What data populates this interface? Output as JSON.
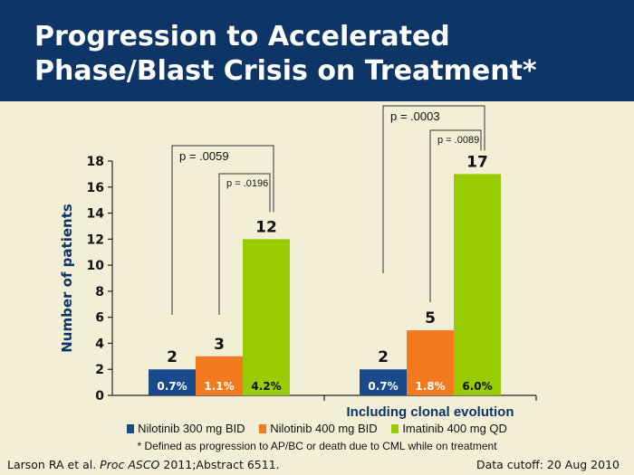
{
  "title_line1": "Progression to Accelerated",
  "title_line2": "Phase/Blast Crisis on Treatment*",
  "chart_data": {
    "type": "bar",
    "ylabel": "Number of patients",
    "ylim": [
      0,
      18
    ],
    "yticks": [
      0,
      2,
      4,
      6,
      8,
      10,
      12,
      14,
      16,
      18
    ],
    "categories": [
      "",
      "Including clonal evolution"
    ],
    "series": [
      {
        "name": "Nilotinib 300 mg BID",
        "color": "#1b4a8c",
        "values": [
          2,
          2
        ],
        "pct_labels": [
          "0.7%",
          "0.7%"
        ]
      },
      {
        "name": "Nilotinib 400 mg BID",
        "color": "#f47a20",
        "values": [
          3,
          5
        ],
        "pct_labels": [
          "1.1%",
          "1.8%"
        ]
      },
      {
        "name": "Imatinib 400 mg QD",
        "color": "#99cc00",
        "values": [
          12,
          17
        ],
        "pct_labels": [
          "4.2%",
          "6.0%"
        ]
      }
    ],
    "annotations": [
      {
        "group": 0,
        "from": 0,
        "to": 2,
        "label": "p = .0059",
        "level": "outer"
      },
      {
        "group": 0,
        "from": 1,
        "to": 2,
        "label": "p = .0196",
        "level": "inner"
      },
      {
        "group": 1,
        "from": 0,
        "to": 2,
        "label": "p = .0003",
        "level": "outer"
      },
      {
        "group": 1,
        "from": 1,
        "to": 2,
        "label": "p = .0089",
        "level": "inner"
      }
    ],
    "grid": false,
    "legend_position": "bottom"
  },
  "footnote": "* Defined as progression to AP/BC or death due to CML while on treatment",
  "reference_prefix": "Larson RA et al. ",
  "reference_journal": "Proc ASCO",
  "reference_suffix": " 2011;Abstract 6511.",
  "data_cutoff": "Data cutoff: 20 Aug 2010"
}
